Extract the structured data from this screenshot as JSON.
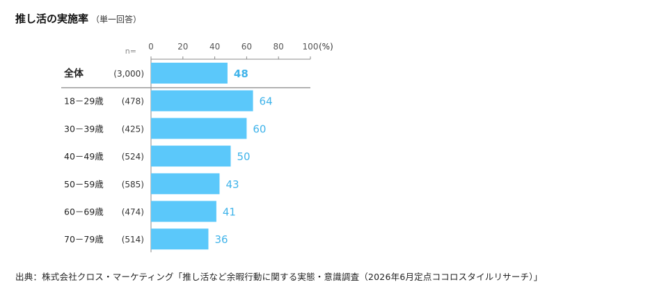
{
  "title": "推し活の実施率",
  "subtitle": "（単一回答）",
  "n_label": "n=",
  "source": "出典：株式会社クロス・マーケティング「推し活など余暇行動に関する実態・意識調査（2026年6月定点ココロスタイルリサーチ）」",
  "colors": {
    "bar": "#5bc8fa",
    "value_text": "#3fb3ea",
    "axis": "#8a8a8a",
    "separator": "#999999"
  },
  "chart_data": {
    "type": "bar",
    "orientation": "horizontal",
    "unit_label": "(%)",
    "xlim": [
      0,
      100
    ],
    "ticks": [
      "0",
      "20",
      "40",
      "60",
      "80",
      "100"
    ],
    "categories": [
      "全体",
      "18－29歳",
      "30－39歳",
      "40－49歳",
      "50－59歳",
      "60－69歳",
      "70－79歳"
    ],
    "n": [
      "(3,000)",
      "(478)",
      "(425)",
      "(524)",
      "(585)",
      "(474)",
      "(514)"
    ],
    "values": [
      48,
      64,
      60,
      50,
      43,
      41,
      36
    ],
    "value_labels": [
      "48",
      "64",
      "60",
      "50",
      "43",
      "41",
      "36"
    ]
  }
}
